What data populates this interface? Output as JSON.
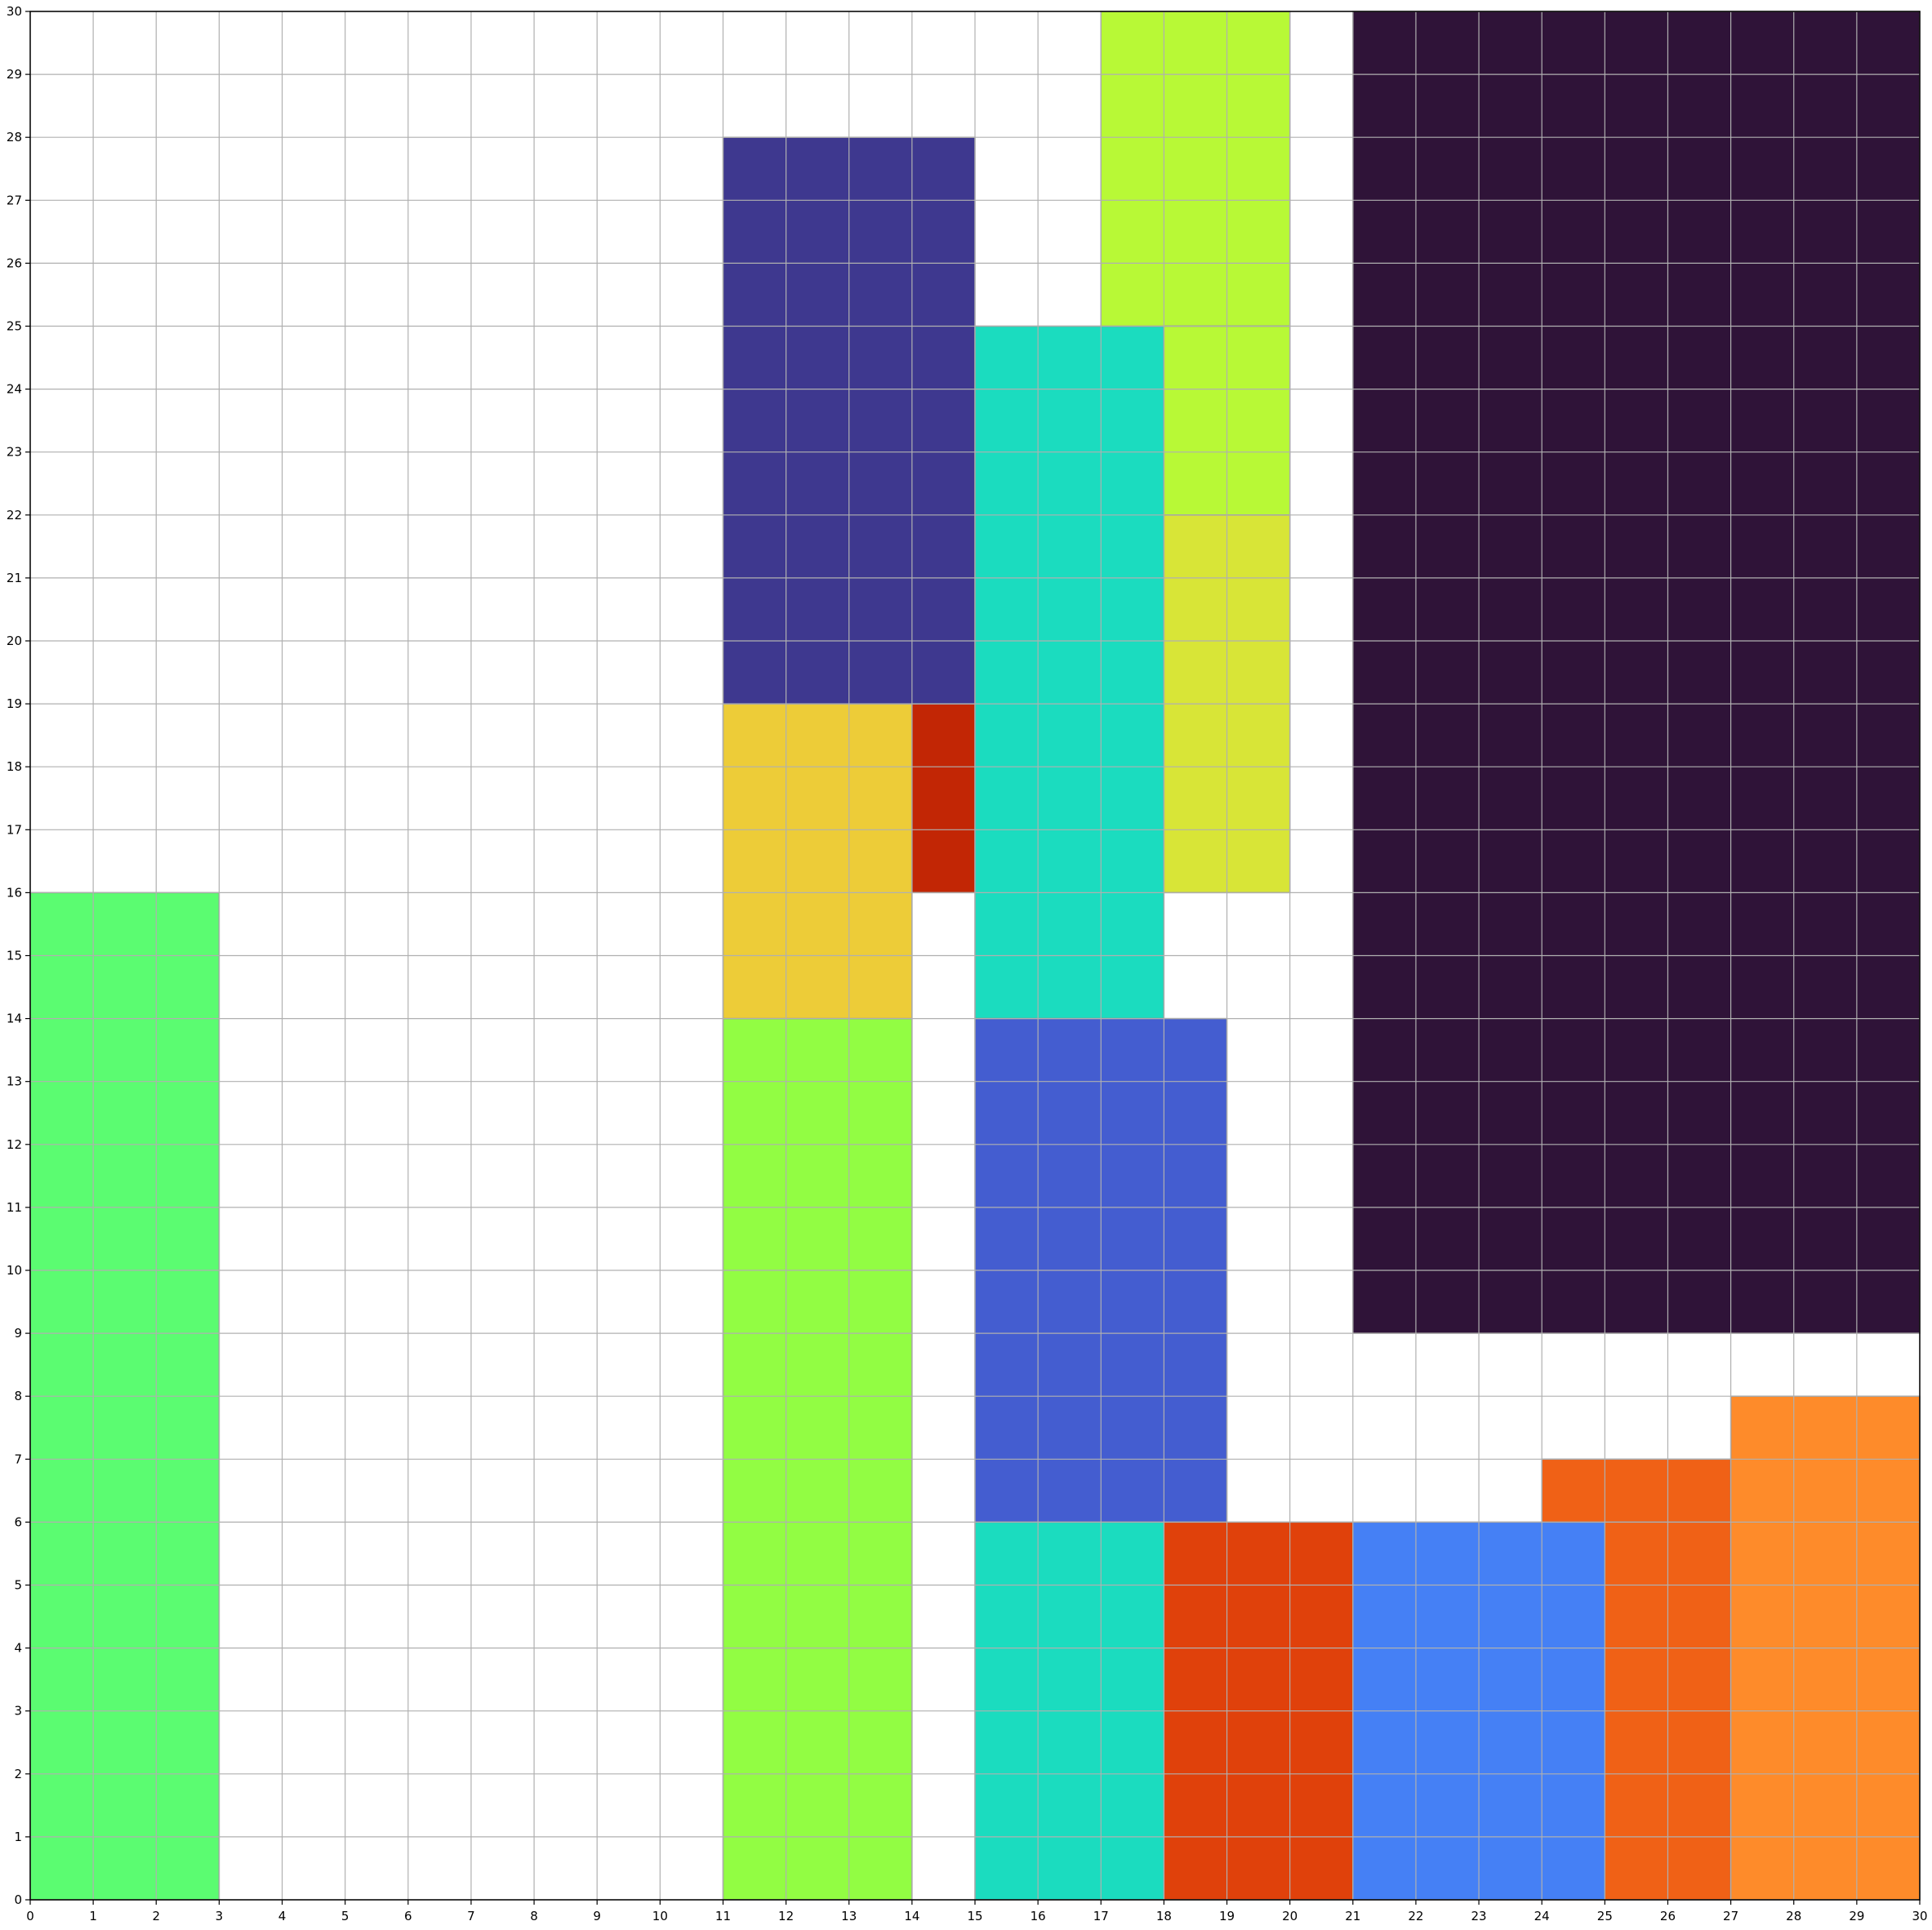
{
  "chart_data": {
    "type": "heatmap",
    "title": "",
    "xlabel": "",
    "ylabel": "",
    "xlim": [
      0,
      30
    ],
    "ylim": [
      0,
      30
    ],
    "grid": true,
    "x_ticks": [
      "0",
      "1",
      "2",
      "3",
      "4",
      "5",
      "6",
      "7",
      "8",
      "9",
      "10",
      "11",
      "12",
      "13",
      "14",
      "15",
      "16",
      "17",
      "18",
      "19",
      "20",
      "21",
      "22",
      "23",
      "24",
      "25",
      "26",
      "27",
      "28",
      "29",
      "30"
    ],
    "y_ticks": [
      "0",
      "1",
      "2",
      "3",
      "4",
      "5",
      "6",
      "7",
      "8",
      "9",
      "10",
      "11",
      "12",
      "13",
      "14",
      "15",
      "16",
      "17",
      "18",
      "19",
      "20",
      "21",
      "22",
      "23",
      "24",
      "25",
      "26",
      "27",
      "28",
      "29",
      "30"
    ],
    "rectangles": [
      {
        "x": 0,
        "y": 0,
        "w": 3,
        "h": 16,
        "color": "#5bfc71"
      },
      {
        "x": 11,
        "y": 0,
        "w": 3,
        "h": 14,
        "color": "#92fd43"
      },
      {
        "x": 11,
        "y": 14,
        "w": 3,
        "h": 5,
        "color": "#edcc38"
      },
      {
        "x": 14,
        "y": 16,
        "w": 1,
        "h": 3,
        "color": "#c22605"
      },
      {
        "x": 11,
        "y": 19,
        "w": 4,
        "h": 9,
        "color": "#3e388f"
      },
      {
        "x": 15,
        "y": 14,
        "w": 3,
        "h": 11,
        "color": "#1bdcbf"
      },
      {
        "x": 17,
        "y": 25,
        "w": 3,
        "h": 5,
        "color": "#b8f936"
      },
      {
        "x": 18,
        "y": 22,
        "w": 2,
        "h": 3,
        "color": "#b8f936"
      },
      {
        "x": 18,
        "y": 16,
        "w": 2,
        "h": 6,
        "color": "#d8e537"
      },
      {
        "x": 15,
        "y": 6,
        "w": 4,
        "h": 8,
        "color": "#445dd0"
      },
      {
        "x": 15,
        "y": 0,
        "w": 3,
        "h": 6,
        "color": "#1bdcbf"
      },
      {
        "x": 18,
        "y": 0,
        "w": 3,
        "h": 6,
        "color": "#e0410b"
      },
      {
        "x": 21,
        "y": 0,
        "w": 4,
        "h": 6,
        "color": "#4580f5"
      },
      {
        "x": 24,
        "y": 6,
        "w": 3,
        "h": 1,
        "color": "#f06116"
      },
      {
        "x": 25,
        "y": 0,
        "w": 2,
        "h": 6,
        "color": "#f06116"
      },
      {
        "x": 27,
        "y": 0,
        "w": 3,
        "h": 8,
        "color": "#fe8b2a"
      },
      {
        "x": 21,
        "y": 9,
        "w": 9,
        "h": 21,
        "color": "#2f1338"
      }
    ]
  }
}
